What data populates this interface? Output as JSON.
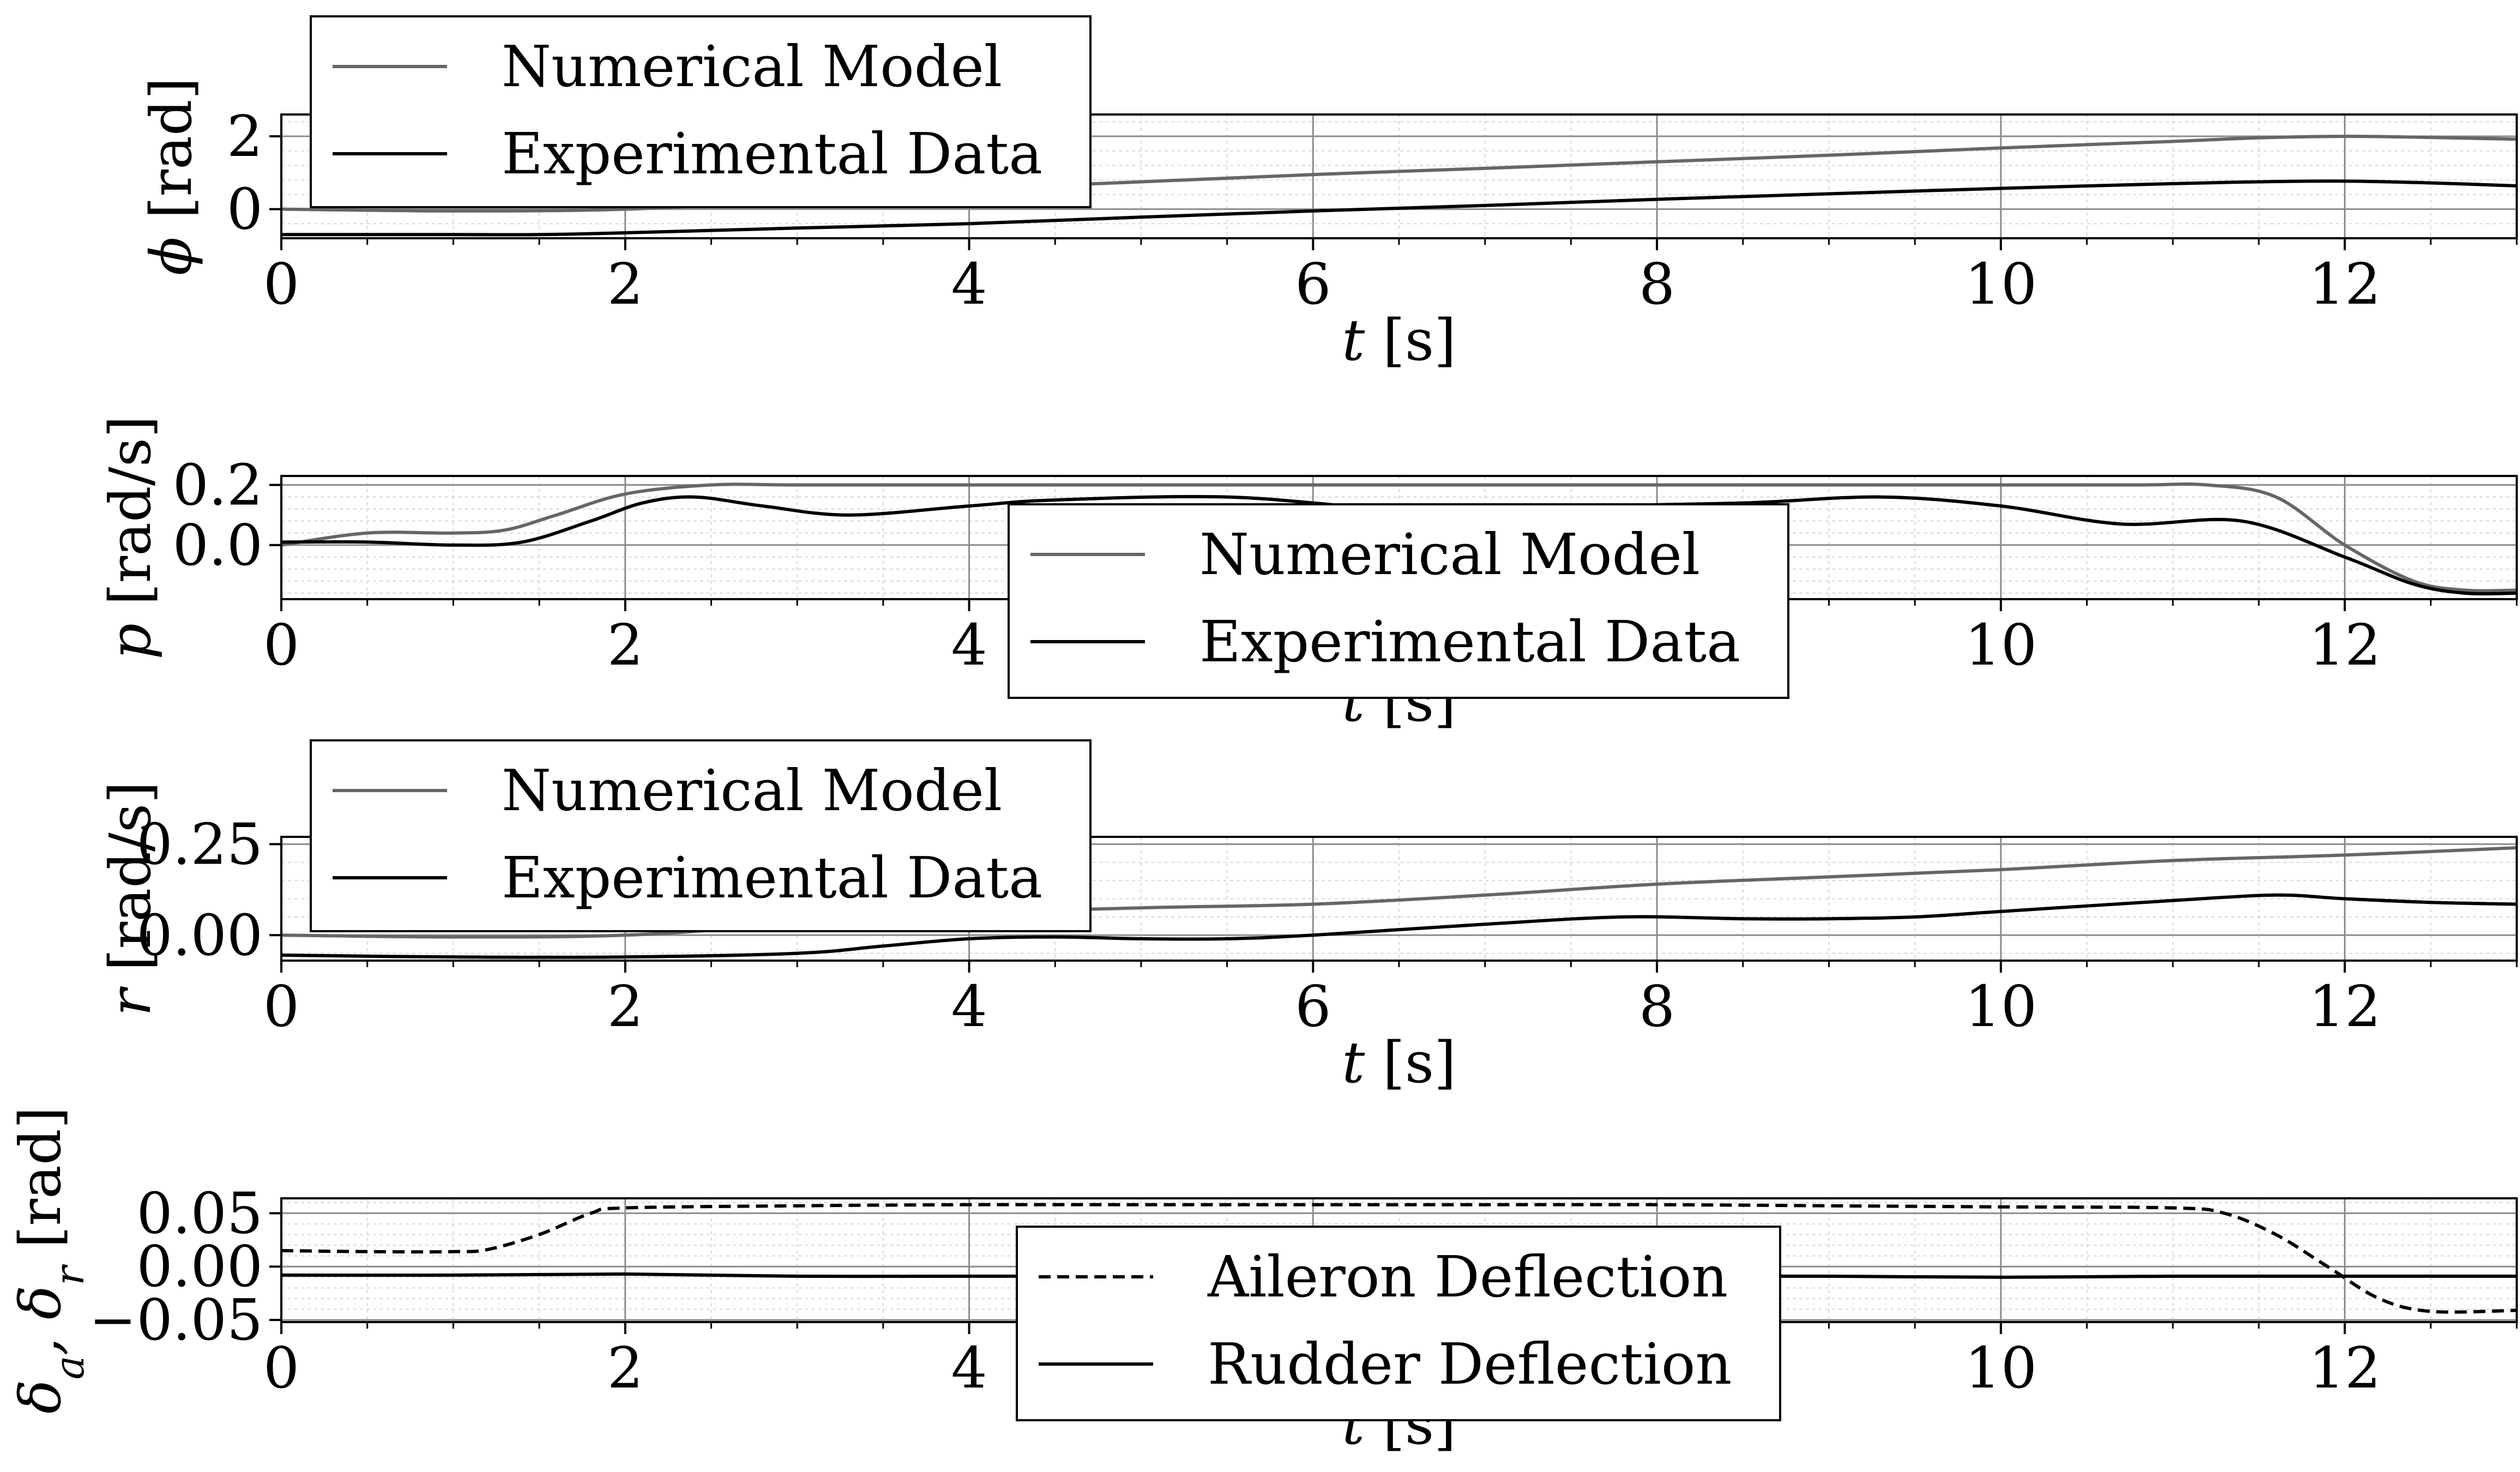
{
  "chart_data": [
    {
      "type": "line",
      "title": "",
      "xlabel": "t [s]",
      "ylabel": "ϕ [rad]",
      "xlim": [
        0,
        13
      ],
      "ylim": [
        -0.8,
        2.6
      ],
      "xticks": [
        "0",
        "2",
        "4",
        "6",
        "8",
        "10",
        "12"
      ],
      "yticks": [
        "0",
        "2"
      ],
      "grid": true,
      "legend": "upper-left",
      "series": [
        {
          "name": "Numerical Model",
          "color": "#666666",
          "dash": "solid",
          "x": [
            0,
            1,
            2,
            3,
            4,
            5,
            6,
            7,
            8,
            9,
            10,
            11,
            11.5,
            12,
            12.5,
            13
          ],
          "values": [
            0.0,
            -0.05,
            0.0,
            0.25,
            0.55,
            0.75,
            0.95,
            1.12,
            1.3,
            1.48,
            1.68,
            1.86,
            1.96,
            2.0,
            1.97,
            1.92
          ]
        },
        {
          "name": "Experimental Data",
          "color": "#000000",
          "dash": "solid",
          "x": [
            0,
            1,
            1.5,
            2,
            3,
            4,
            5,
            6,
            7,
            8,
            9,
            10,
            11,
            11.5,
            12,
            12.5,
            13
          ],
          "values": [
            -0.7,
            -0.7,
            -0.7,
            -0.65,
            -0.52,
            -0.4,
            -0.22,
            -0.05,
            0.1,
            0.27,
            0.42,
            0.57,
            0.7,
            0.75,
            0.77,
            0.72,
            0.64
          ]
        }
      ]
    },
    {
      "type": "line",
      "title": "",
      "xlabel": "t [s]",
      "ylabel": "p [rad/s]",
      "xlim": [
        0,
        13
      ],
      "ylim": [
        -0.18,
        0.23
      ],
      "xticks": [
        "0",
        "2",
        "4",
        "6",
        "8",
        "10",
        "12"
      ],
      "yticks": [
        "0.0",
        "0.2"
      ],
      "grid": true,
      "legend": "lower-center",
      "series": [
        {
          "name": "Numerical Model",
          "color": "#666666",
          "dash": "solid",
          "x": [
            0,
            0.5,
            1,
            1.3,
            1.6,
            2,
            2.5,
            3,
            4,
            5,
            6,
            7,
            8,
            9,
            10,
            10.8,
            11.2,
            11.6,
            12,
            12.4,
            12.7,
            13
          ],
          "values": [
            0.0,
            0.04,
            0.04,
            0.05,
            0.1,
            0.17,
            0.2,
            0.2,
            0.2,
            0.2,
            0.2,
            0.2,
            0.2,
            0.2,
            0.2,
            0.2,
            0.2,
            0.16,
            0.0,
            -0.12,
            -0.15,
            -0.15
          ]
        },
        {
          "name": "Experimental Data",
          "color": "#000000",
          "dash": "solid",
          "x": [
            0,
            0.5,
            1,
            1.4,
            1.8,
            2.1,
            2.4,
            2.8,
            3.3,
            4,
            4.5,
            5.5,
            6.5,
            7.5,
            8.5,
            9.3,
            10,
            10.7,
            11.4,
            12,
            12.4,
            12.7,
            13
          ],
          "values": [
            0.01,
            0.01,
            0.0,
            0.01,
            0.08,
            0.14,
            0.16,
            0.13,
            0.1,
            0.13,
            0.15,
            0.16,
            0.12,
            0.13,
            0.14,
            0.16,
            0.13,
            0.07,
            0.08,
            -0.04,
            -0.13,
            -0.16,
            -0.16
          ]
        }
      ]
    },
    {
      "type": "line",
      "title": "",
      "xlabel": "t [s]",
      "ylabel": "r [rad/s]",
      "xlim": [
        0,
        13
      ],
      "ylim": [
        -0.07,
        0.27
      ],
      "xticks": [
        "0",
        "2",
        "4",
        "6",
        "8",
        "10",
        "12"
      ],
      "yticks": [
        "0.00",
        "0.25"
      ],
      "grid": true,
      "legend": "upper-left",
      "series": [
        {
          "name": "Numerical Model",
          "color": "#666666",
          "dash": "solid",
          "x": [
            0,
            1,
            2,
            3,
            4,
            5,
            6,
            7,
            8,
            9,
            10,
            11,
            12,
            13
          ],
          "values": [
            0.0,
            -0.005,
            0.0,
            0.03,
            0.06,
            0.075,
            0.085,
            0.11,
            0.14,
            0.16,
            0.18,
            0.205,
            0.22,
            0.24
          ]
        },
        {
          "name": "Experimental Data",
          "color": "#000000",
          "dash": "solid",
          "x": [
            0,
            1,
            2,
            3,
            3.5,
            4,
            4.5,
            5,
            5.5,
            6,
            7,
            7.8,
            8.5,
            9,
            9.5,
            10,
            11,
            11.6,
            12,
            12.5,
            13
          ],
          "values": [
            -0.055,
            -0.06,
            -0.06,
            -0.05,
            -0.03,
            -0.01,
            -0.005,
            -0.01,
            -0.01,
            0.0,
            0.03,
            0.05,
            0.045,
            0.045,
            0.05,
            0.065,
            0.095,
            0.11,
            0.1,
            0.09,
            0.085
          ]
        }
      ]
    },
    {
      "type": "line",
      "title": "",
      "xlabel": "t [s]",
      "ylabel": "δa, δr [rad]",
      "xlim": [
        0,
        13
      ],
      "ylim": [
        -0.052,
        0.064
      ],
      "xticks": [
        "0",
        "2",
        "4",
        "6",
        "8",
        "10",
        "12"
      ],
      "yticks": [
        "0.05",
        "0.00",
        "−0.05"
      ],
      "grid": true,
      "legend": "lower-center",
      "series": [
        {
          "name": "Aileron Deflection",
          "color": "#000000",
          "dash": "dashed",
          "x": [
            0,
            0.5,
            1,
            1.2,
            1.5,
            1.8,
            2,
            3,
            4,
            5,
            6,
            7,
            8,
            9,
            10,
            11,
            11.3,
            11.6,
            11.9,
            12.2,
            12.5,
            13
          ],
          "values": [
            0.015,
            0.014,
            0.014,
            0.016,
            0.03,
            0.05,
            0.055,
            0.057,
            0.058,
            0.058,
            0.058,
            0.058,
            0.058,
            0.057,
            0.056,
            0.055,
            0.05,
            0.03,
            0.0,
            -0.03,
            -0.042,
            -0.041
          ]
        },
        {
          "name": "Rudder Deflection",
          "color": "#000000",
          "dash": "solid",
          "x": [
            0,
            1,
            2,
            3,
            4,
            5,
            6,
            7,
            8,
            9,
            10,
            11,
            12,
            13
          ],
          "values": [
            -0.008,
            -0.008,
            -0.007,
            -0.009,
            -0.009,
            -0.009,
            -0.009,
            -0.009,
            -0.009,
            -0.009,
            -0.01,
            -0.009,
            -0.009,
            -0.009
          ]
        }
      ]
    }
  ]
}
